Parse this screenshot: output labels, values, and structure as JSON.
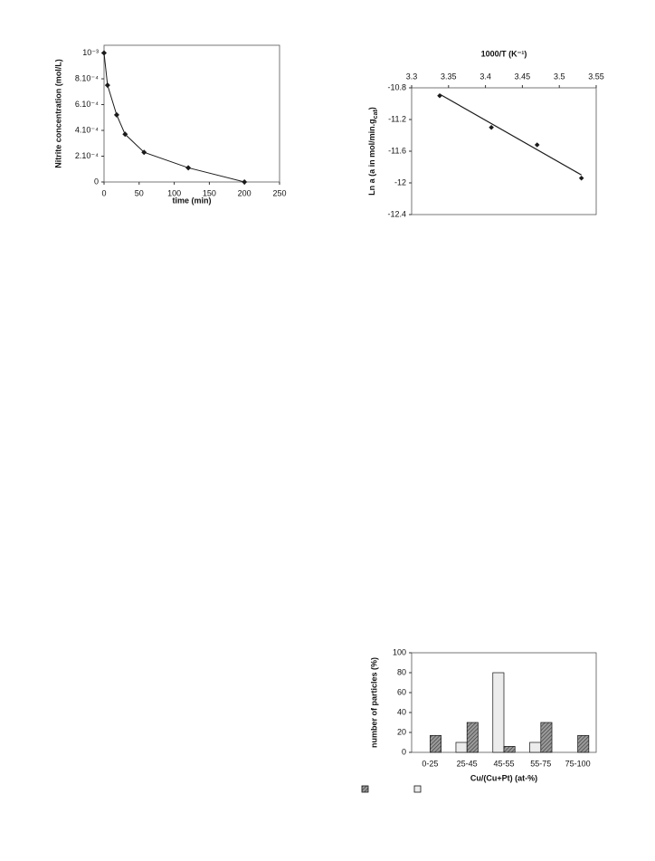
{
  "chart_data": [
    {
      "type": "line",
      "y_label": "Nitrite concentration (mol/L)",
      "x_label": "time (min)",
      "x": [
        0,
        5,
        18,
        30,
        57,
        120,
        200
      ],
      "series": [
        {
          "color": "#1a1a1a",
          "values": [
            0.001,
            0.00075,
            0.00052,
            0.00037,
            0.00023,
            0.00011,
            0
          ]
        }
      ],
      "xlim": [
        0,
        250
      ],
      "xticks": [
        0,
        50,
        100,
        150,
        200,
        250
      ],
      "ylim": [
        0,
        0.00106
      ],
      "yticks": [
        {
          "value": 0,
          "label": "0"
        },
        {
          "value": 0.0002,
          "label": "2.10⁻⁴"
        },
        {
          "value": 0.0004,
          "label": "4.10⁻⁴"
        },
        {
          "value": 0.0006,
          "label": "6.10⁻⁴"
        },
        {
          "value": 0.0008,
          "label": "8.10⁻⁴"
        },
        {
          "value": 0.001,
          "label": "10⁻³"
        }
      ]
    },
    {
      "type": "scatter",
      "x_label": "1000/T (K⁻¹)",
      "y_label": [
        "Ln a (a in mol/min.g",
        "cat",
        ")"
      ],
      "series": [
        {
          "color": "#1a1a1a",
          "mode": "markers",
          "x": [
            3.338,
            3.408,
            3.47,
            3.53
          ],
          "values": [
            -10.9,
            -11.3,
            -11.52,
            -11.94
          ]
        },
        {
          "color": "#1a1a1a",
          "mode": "line",
          "x": [
            3.338,
            3.53
          ],
          "values": [
            -10.88,
            -11.9
          ]
        }
      ],
      "xlim": [
        3.3,
        3.55
      ],
      "xticks": [
        3.3,
        3.35,
        3.4,
        3.45,
        3.5,
        3.55
      ],
      "x_axis": "top",
      "ylim": [
        -12.4,
        -10.8
      ],
      "yticks": [
        -10.8,
        -11.2,
        -11.6,
        -12,
        -12.4
      ]
    },
    {
      "type": "bar",
      "y_label": "number of particles (%)",
      "x_label": "Cu/(Cu+Pt) (at-%)",
      "categories": [
        "0-25",
        "25-45",
        "45-55",
        "55-75",
        "75-100"
      ],
      "series": [
        {
          "color": "#ececec",
          "values": [
            0,
            10,
            80,
            10,
            0
          ]
        },
        {
          "color": "#777777",
          "pattern": "hatch",
          "values": [
            17,
            30,
            6,
            30,
            17
          ]
        }
      ],
      "ylim": [
        0,
        100
      ],
      "yticks": [
        0,
        20,
        40,
        60,
        80,
        100
      ]
    }
  ]
}
